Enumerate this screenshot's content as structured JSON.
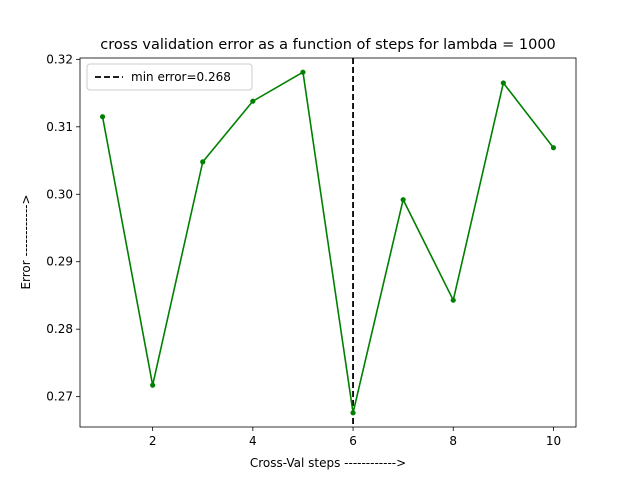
{
  "chart_data": {
    "type": "line",
    "title": "cross validation error as a function of steps for lambda = 1000",
    "xlabel": "Cross-Val steps ------------>",
    "ylabel": "Error ------------>",
    "x": [
      1,
      2,
      3,
      4,
      5,
      6,
      7,
      8,
      9,
      10
    ],
    "series": [
      {
        "values": [
          0.3115,
          0.2717,
          0.3048,
          0.3138,
          0.3181,
          0.2676,
          0.2992,
          0.2843,
          0.3165,
          0.3069
        ],
        "color": "#008000",
        "marker": "circle"
      }
    ],
    "vline": {
      "x": 6,
      "label": "min error=0.268",
      "color": "#000000",
      "style": "dashed"
    },
    "xlim": [
      0.55,
      10.45
    ],
    "ylim": [
      0.2655,
      0.3202
    ],
    "xticks": [
      2,
      4,
      6,
      8,
      10
    ],
    "xtick_labels": [
      "2",
      "4",
      "6",
      "8",
      "10"
    ],
    "yticks": [
      0.27,
      0.28,
      0.29,
      0.3,
      0.31,
      0.32
    ],
    "ytick_labels": [
      "0.27",
      "0.28",
      "0.29",
      "0.30",
      "0.31",
      "0.32"
    ],
    "grid": false,
    "legend_position": "top-left"
  }
}
